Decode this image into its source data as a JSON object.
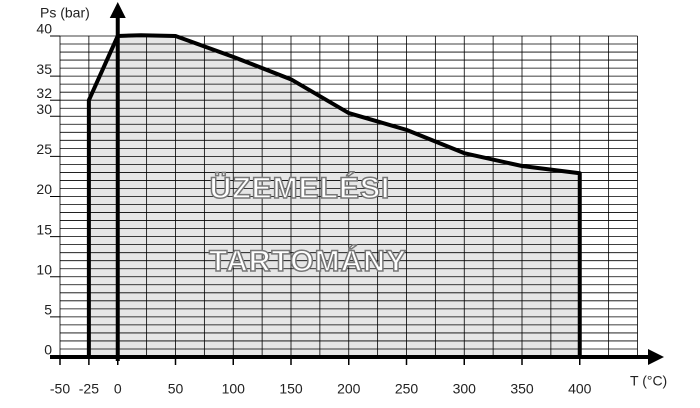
{
  "chart_data": {
    "type": "area",
    "y_label": "Ps (bar)",
    "x_label": "T (°C)",
    "annotations": [
      "ÜZEMELÉSI",
      "TARTOMÁNY"
    ],
    "x": [
      -25,
      -25,
      0,
      20,
      50,
      100,
      150,
      200,
      250,
      300,
      350,
      400,
      400
    ],
    "series": [
      {
        "color": "#e6e6e6",
        "values": [
          0,
          32,
          40,
          40.1,
          40,
          37.4,
          34.6,
          30.4,
          28.3,
          25.4,
          23.8,
          22.9,
          0
        ]
      }
    ],
    "xlim": [
      -50,
      450
    ],
    "xticks": [
      -50,
      -25,
      0,
      50,
      100,
      150,
      200,
      250,
      300,
      350,
      400
    ],
    "ylim": [
      0,
      40
    ],
    "yticks": [
      0,
      5,
      10,
      15,
      20,
      25,
      30,
      32,
      35,
      40
    ],
    "minor_grid": {
      "x": 25,
      "y": 1
    }
  }
}
